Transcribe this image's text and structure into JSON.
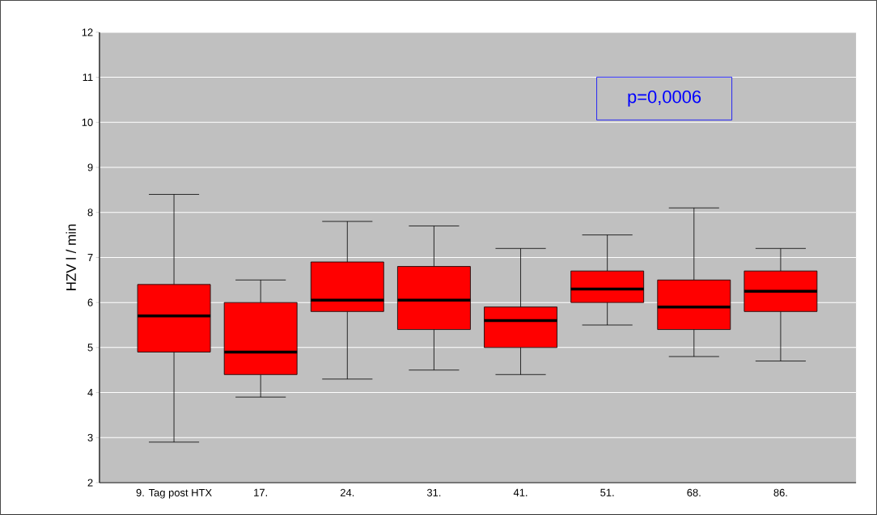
{
  "chart_data": {
    "type": "box",
    "ylabel": "HZV l / min",
    "categories": [
      "9. Tag post HTX",
      "17.",
      "24.",
      "31.",
      "41.",
      "51.",
      "68.",
      "86."
    ],
    "boxes": [
      {
        "low": 2.9,
        "q1": 4.9,
        "median": 5.7,
        "q3": 6.4,
        "high": 8.4
      },
      {
        "low": 3.9,
        "q1": 4.4,
        "median": 4.9,
        "q3": 6.0,
        "high": 6.5
      },
      {
        "low": 4.3,
        "q1": 5.8,
        "median": 6.05,
        "q3": 6.9,
        "high": 7.8
      },
      {
        "low": 4.5,
        "q1": 5.4,
        "median": 6.05,
        "q3": 6.8,
        "high": 7.7
      },
      {
        "low": 4.4,
        "q1": 5.0,
        "median": 5.6,
        "q3": 5.9,
        "high": 7.2
      },
      {
        "low": 5.5,
        "q1": 6.0,
        "median": 6.3,
        "q3": 6.7,
        "high": 7.5
      },
      {
        "low": 4.8,
        "q1": 5.4,
        "median": 5.9,
        "q3": 6.5,
        "high": 8.1
      },
      {
        "low": 4.7,
        "q1": 5.8,
        "median": 6.25,
        "q3": 6.7,
        "high": 7.2
      }
    ],
    "color": "#ff0000",
    "ylim": [
      2,
      12
    ],
    "yticks": [
      2,
      3,
      4,
      5,
      6,
      7,
      8,
      9,
      10,
      11,
      12
    ],
    "grid": "y",
    "annotations": [
      "p=0,0006"
    ]
  }
}
